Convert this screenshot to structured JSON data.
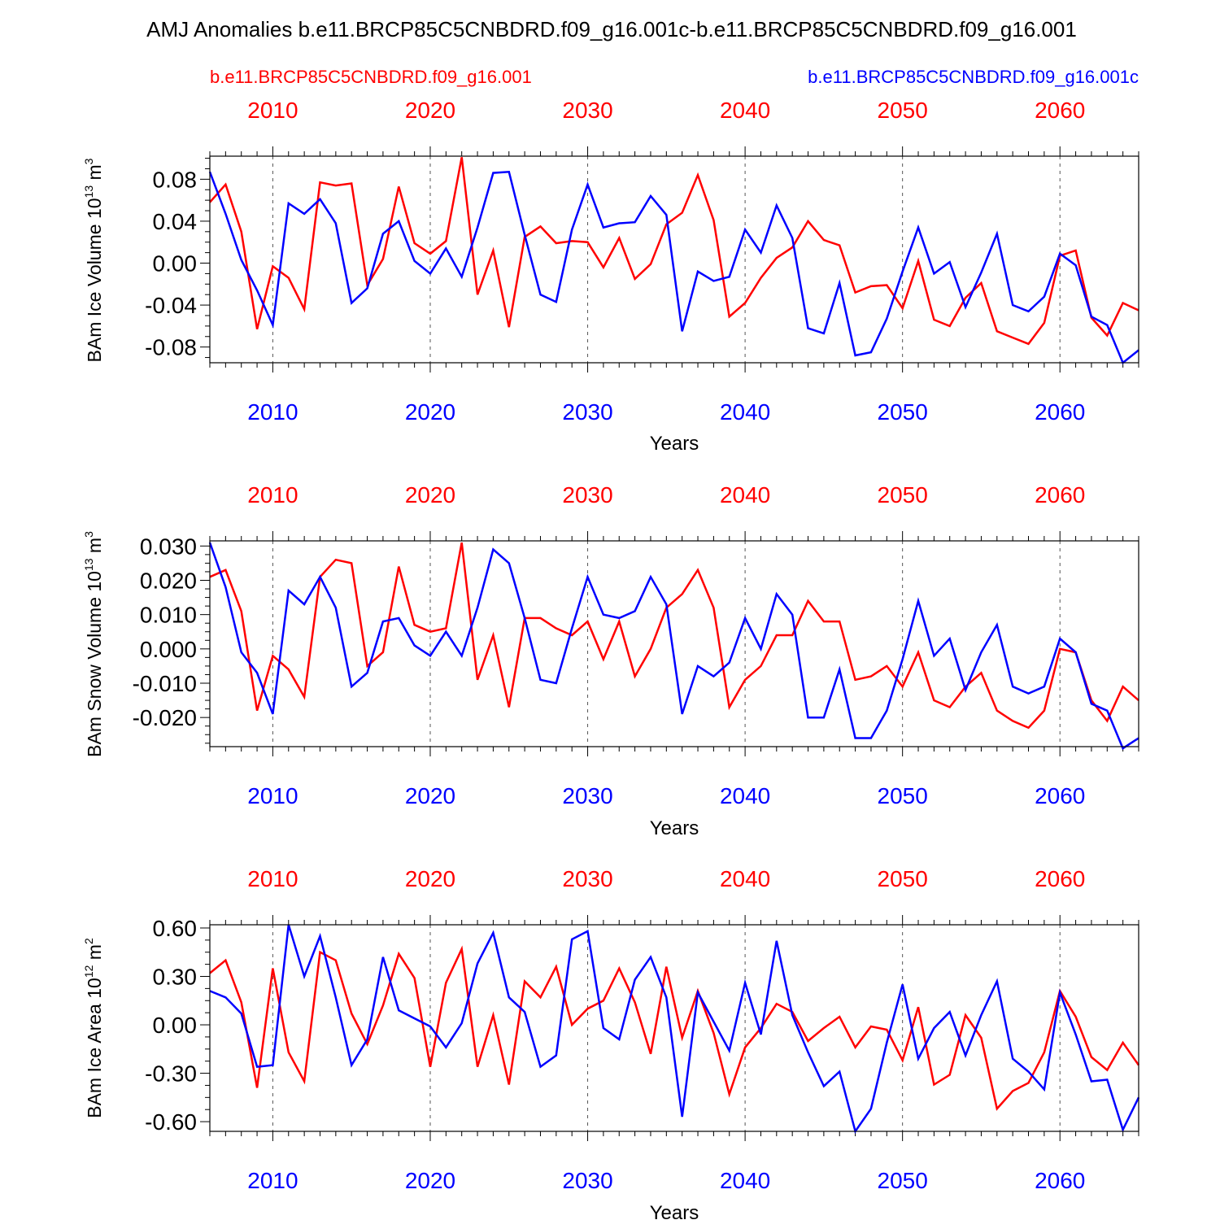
{
  "figure": {
    "title": "AMJ Anomalies b.e11.BRCP85C5CNBDRD.f09_g16.001c-b.e11.BRCP85C5CNBDRD.f09_g16.001",
    "legend": {
      "red_label": "b.e11.BRCP85C5CNBDRD.f09_g16.001",
      "blue_label": "b.e11.BRCP85C5CNBDRD.f09_g16.001c"
    }
  },
  "colors": {
    "red": "#ff0000",
    "blue": "#0000ff",
    "axis": "#000000",
    "grid": "#555555"
  },
  "chart_data": [
    {
      "type": "line",
      "ylabel": {
        "main": "BAm Ice Volume 10",
        "exp": "13",
        "unit": " m",
        "unit_exp": "3"
      },
      "xlabel": "Years",
      "xlim": [
        2006,
        2065
      ],
      "ylim": [
        -0.095,
        0.102
      ],
      "xticks": [
        2010,
        2020,
        2030,
        2040,
        2050,
        2060
      ],
      "xtick_labels": [
        "2010",
        "2020",
        "2030",
        "2040",
        "2050",
        "2060"
      ],
      "yticks": [
        -0.08,
        -0.04,
        0.0,
        0.04,
        0.08
      ],
      "ytick_labels": [
        "-0.08",
        "-0.04",
        "0.00",
        "0.04",
        "0.08"
      ],
      "yminor_step": 0.01,
      "grid": "vertical-dashed",
      "x": [
        2006,
        2007,
        2008,
        2009,
        2010,
        2011,
        2012,
        2013,
        2014,
        2015,
        2016,
        2017,
        2018,
        2019,
        2020,
        2021,
        2022,
        2023,
        2024,
        2025,
        2026,
        2027,
        2028,
        2029,
        2030,
        2031,
        2032,
        2033,
        2034,
        2035,
        2036,
        2037,
        2038,
        2039,
        2040,
        2041,
        2042,
        2043,
        2044,
        2045,
        2046,
        2047,
        2048,
        2049,
        2050,
        2051,
        2052,
        2053,
        2054,
        2055,
        2056,
        2057,
        2058,
        2059,
        2060,
        2061,
        2062,
        2063,
        2064,
        2065
      ],
      "series": [
        {
          "name": "b.e11.BRCP85C5CNBDRD.f09_g16.001",
          "color": "red",
          "values": [
            0.058,
            0.075,
            0.03,
            -0.063,
            -0.003,
            -0.014,
            -0.044,
            0.077,
            0.074,
            0.076,
            -0.021,
            0.004,
            0.073,
            0.019,
            0.009,
            0.021,
            0.101,
            -0.03,
            0.012,
            -0.061,
            0.025,
            0.035,
            0.019,
            0.021,
            0.02,
            -0.004,
            0.024,
            -0.015,
            -0.001,
            0.037,
            0.048,
            0.084,
            0.041,
            -0.051,
            -0.038,
            -0.014,
            0.005,
            0.015,
            0.04,
            0.022,
            0.017,
            -0.028,
            -0.022,
            -0.021,
            -0.043,
            0.002,
            -0.054,
            -0.06,
            -0.033,
            -0.019,
            -0.065,
            -0.071,
            -0.077,
            -0.057,
            0.007,
            0.012,
            -0.052,
            -0.069,
            -0.038,
            -0.045
          ]
        },
        {
          "name": "b.e11.BRCP85C5CNBDRD.f09_g16.001c",
          "color": "blue",
          "values": [
            0.087,
            0.047,
            0.003,
            -0.026,
            -0.059,
            0.057,
            0.047,
            0.061,
            0.038,
            -0.038,
            -0.024,
            0.028,
            0.04,
            0.002,
            -0.01,
            0.014,
            -0.013,
            0.034,
            0.086,
            0.087,
            0.027,
            -0.03,
            -0.037,
            0.032,
            0.075,
            0.034,
            0.038,
            0.039,
            0.064,
            0.046,
            -0.065,
            -0.008,
            -0.017,
            -0.013,
            0.032,
            0.01,
            0.055,
            0.024,
            -0.062,
            -0.067,
            -0.019,
            -0.088,
            -0.085,
            -0.053,
            -0.008,
            0.034,
            -0.01,
            0.001,
            -0.042,
            -0.009,
            0.028,
            -0.04,
            -0.046,
            -0.032,
            0.009,
            -0.002,
            -0.051,
            -0.059,
            -0.095,
            -0.083
          ]
        }
      ]
    },
    {
      "type": "line",
      "ylabel": {
        "main": "BAm Snow Volume 10",
        "exp": "13",
        "unit": " m",
        "unit_exp": "3"
      },
      "xlabel": "Years",
      "xlim": [
        2006,
        2065
      ],
      "ylim": [
        -0.0285,
        0.0315
      ],
      "xticks": [
        2010,
        2020,
        2030,
        2040,
        2050,
        2060
      ],
      "xtick_labels": [
        "2010",
        "2020",
        "2030",
        "2040",
        "2050",
        "2060"
      ],
      "yticks": [
        -0.02,
        -0.01,
        0.0,
        0.01,
        0.02,
        0.03
      ],
      "ytick_labels": [
        "-0.020",
        "-0.010",
        "0.000",
        "0.010",
        "0.020",
        "0.030"
      ],
      "yminor_step": 0.0025,
      "grid": "vertical-dashed",
      "x": [
        2006,
        2007,
        2008,
        2009,
        2010,
        2011,
        2012,
        2013,
        2014,
        2015,
        2016,
        2017,
        2018,
        2019,
        2020,
        2021,
        2022,
        2023,
        2024,
        2025,
        2026,
        2027,
        2028,
        2029,
        2030,
        2031,
        2032,
        2033,
        2034,
        2035,
        2036,
        2037,
        2038,
        2039,
        2040,
        2041,
        2042,
        2043,
        2044,
        2045,
        2046,
        2047,
        2048,
        2049,
        2050,
        2051,
        2052,
        2053,
        2054,
        2055,
        2056,
        2057,
        2058,
        2059,
        2060,
        2061,
        2062,
        2063,
        2064,
        2065
      ],
      "series": [
        {
          "name": "b.e11.BRCP85C5CNBDRD.f09_g16.001",
          "color": "red",
          "values": [
            0.021,
            0.023,
            0.011,
            -0.018,
            -0.002,
            -0.006,
            -0.014,
            0.021,
            0.026,
            0.025,
            -0.005,
            -0.001,
            0.024,
            0.007,
            0.005,
            0.006,
            0.031,
            -0.009,
            0.004,
            -0.017,
            0.009,
            0.009,
            0.006,
            0.004,
            0.008,
            -0.003,
            0.008,
            -0.008,
            -0.0,
            0.012,
            0.016,
            0.023,
            0.012,
            -0.017,
            -0.009,
            -0.005,
            0.004,
            0.004,
            0.014,
            0.008,
            0.008,
            -0.009,
            -0.008,
            -0.005,
            -0.011,
            -0.001,
            -0.015,
            -0.017,
            -0.011,
            -0.007,
            -0.018,
            -0.021,
            -0.023,
            -0.018,
            0.0,
            -0.001,
            -0.015,
            -0.021,
            -0.011,
            -0.015
          ]
        },
        {
          "name": "b.e11.BRCP85C5CNBDRD.f09_g16.001c",
          "color": "blue",
          "values": [
            0.031,
            0.018,
            -0.001,
            -0.007,
            -0.019,
            0.017,
            0.013,
            0.021,
            0.012,
            -0.011,
            -0.007,
            0.008,
            0.009,
            0.001,
            -0.002,
            0.005,
            -0.002,
            0.012,
            0.029,
            0.025,
            0.009,
            -0.009,
            -0.01,
            0.006,
            0.021,
            0.01,
            0.009,
            0.011,
            0.021,
            0.013,
            -0.019,
            -0.005,
            -0.008,
            -0.004,
            0.009,
            0.0,
            0.016,
            0.01,
            -0.02,
            -0.02,
            -0.006,
            -0.026,
            -0.026,
            -0.018,
            -0.003,
            0.014,
            -0.002,
            0.003,
            -0.012,
            -0.001,
            0.007,
            -0.011,
            -0.013,
            -0.011,
            0.003,
            -0.001,
            -0.016,
            -0.018,
            -0.029,
            -0.026
          ]
        }
      ]
    },
    {
      "type": "line",
      "ylabel": {
        "main": "BAm Ice Area 10",
        "exp": "12",
        "unit": " m",
        "unit_exp": "2"
      },
      "xlabel": "Years",
      "xlim": [
        2006,
        2065
      ],
      "ylim": [
        -0.66,
        0.62
      ],
      "xticks": [
        2010,
        2020,
        2030,
        2040,
        2050,
        2060
      ],
      "xtick_labels": [
        "2010",
        "2020",
        "2030",
        "2040",
        "2050",
        "2060"
      ],
      "yticks": [
        -0.6,
        -0.3,
        0.0,
        0.3,
        0.6
      ],
      "ytick_labels": [
        "-0.60",
        "-0.30",
        "0.00",
        "0.30",
        "0.60"
      ],
      "yminor_step": 0.075,
      "grid": "vertical-dashed",
      "x": [
        2006,
        2007,
        2008,
        2009,
        2010,
        2011,
        2012,
        2013,
        2014,
        2015,
        2016,
        2017,
        2018,
        2019,
        2020,
        2021,
        2022,
        2023,
        2024,
        2025,
        2026,
        2027,
        2028,
        2029,
        2030,
        2031,
        2032,
        2033,
        2034,
        2035,
        2036,
        2037,
        2038,
        2039,
        2040,
        2041,
        2042,
        2043,
        2044,
        2045,
        2046,
        2047,
        2048,
        2049,
        2050,
        2051,
        2052,
        2053,
        2054,
        2055,
        2056,
        2057,
        2058,
        2059,
        2060,
        2061,
        2062,
        2063,
        2064,
        2065
      ],
      "series": [
        {
          "name": "b.e11.BRCP85C5CNBDRD.f09_g16.001",
          "color": "red",
          "values": [
            0.32,
            0.4,
            0.14,
            -0.39,
            0.35,
            -0.17,
            -0.35,
            0.45,
            0.4,
            0.07,
            -0.12,
            0.12,
            0.44,
            0.29,
            -0.26,
            0.26,
            0.47,
            -0.26,
            0.06,
            -0.37,
            0.27,
            0.17,
            0.36,
            0.0,
            0.1,
            0.15,
            0.35,
            0.14,
            -0.18,
            0.36,
            -0.08,
            0.21,
            -0.05,
            -0.43,
            -0.14,
            -0.02,
            0.13,
            0.08,
            -0.1,
            -0.02,
            0.05,
            -0.14,
            -0.01,
            -0.03,
            -0.22,
            0.11,
            -0.37,
            -0.31,
            0.06,
            -0.08,
            -0.52,
            -0.41,
            -0.36,
            -0.17,
            0.21,
            0.05,
            -0.2,
            -0.28,
            -0.11,
            -0.25
          ]
        },
        {
          "name": "b.e11.BRCP85C5CNBDRD.f09_g16.001c",
          "color": "blue",
          "values": [
            0.21,
            0.17,
            0.07,
            -0.26,
            -0.25,
            0.62,
            0.3,
            0.55,
            0.17,
            -0.25,
            -0.09,
            0.42,
            0.09,
            0.04,
            -0.01,
            -0.14,
            0.01,
            0.38,
            0.57,
            0.17,
            0.08,
            -0.26,
            -0.19,
            0.53,
            0.58,
            -0.02,
            -0.09,
            0.28,
            0.42,
            0.17,
            -0.57,
            0.2,
            0.02,
            -0.16,
            0.26,
            -0.06,
            0.52,
            0.06,
            -0.17,
            -0.38,
            -0.29,
            -0.66,
            -0.52,
            -0.11,
            0.25,
            -0.21,
            -0.02,
            0.08,
            -0.19,
            0.06,
            0.27,
            -0.21,
            -0.29,
            -0.4,
            0.2,
            -0.06,
            -0.35,
            -0.34,
            -0.65,
            -0.45
          ]
        }
      ]
    }
  ]
}
